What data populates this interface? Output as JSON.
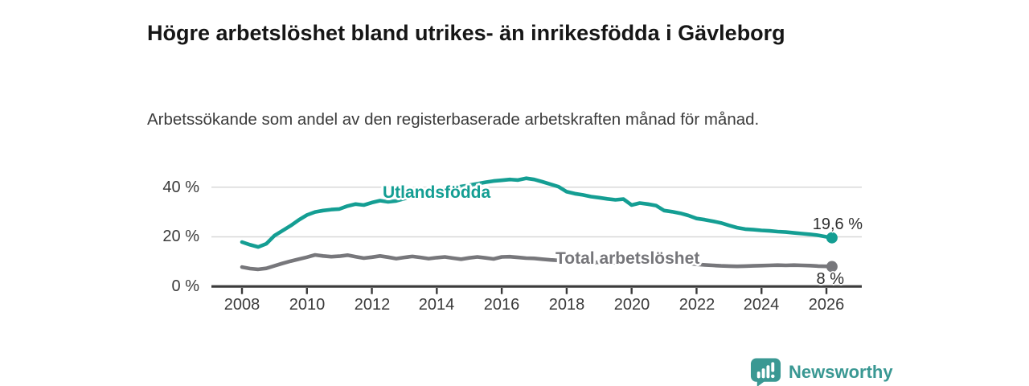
{
  "chart_data": {
    "type": "line",
    "title": "Högre arbetslöshet bland utrikes- än inrikesfödda i Gävleborg",
    "subtitle": "Arbetssökande som andel av den registerbaserade arbetskraften månad för månad.",
    "xlabel": "",
    "ylabel": "",
    "grid": "horizontal",
    "legend_position": "inline-labels-on-lines",
    "xlim": [
      2007.1,
      2027.1
    ],
    "ylim": [
      0,
      47
    ],
    "y_tick_labels": [
      "40 %",
      "20 %",
      "0 %"
    ],
    "y_tick_values": [
      40,
      20,
      0
    ],
    "x_tick_labels": [
      "2008",
      "2010",
      "2012",
      "2014",
      "2016",
      "2018",
      "2020",
      "2022",
      "2024",
      "2026"
    ],
    "x": [
      2008.0,
      2008.25,
      2008.5,
      2008.75,
      2009.0,
      2009.25,
      2009.5,
      2009.75,
      2010.0,
      2010.25,
      2010.5,
      2010.75,
      2011.0,
      2011.25,
      2011.5,
      2011.75,
      2012.0,
      2012.25,
      2012.5,
      2012.75,
      2013.0,
      2013.25,
      2013.5,
      2013.75,
      2014.0,
      2014.25,
      2014.5,
      2014.75,
      2015.0,
      2015.25,
      2015.5,
      2015.75,
      2016.0,
      2016.25,
      2016.5,
      2016.75,
      2017.0,
      2017.25,
      2017.5,
      2017.75,
      2018.0,
      2018.25,
      2018.5,
      2018.75,
      2019.0,
      2019.25,
      2019.5,
      2019.75,
      2020.0,
      2020.25,
      2020.5,
      2020.75,
      2021.0,
      2021.25,
      2021.5,
      2021.75,
      2022.0,
      2022.25,
      2022.5,
      2022.75,
      2023.0,
      2023.25,
      2023.5,
      2023.75,
      2024.0,
      2024.25,
      2024.5,
      2024.75,
      2025.0,
      2025.25,
      2025.5,
      2025.75,
      2026.0,
      2026.17
    ],
    "series": [
      {
        "name": "Total arbetslöshet",
        "color": "#77777b",
        "end_label": "8 %",
        "end_value": 8.0,
        "values": [
          7.8,
          7.2,
          6.9,
          7.3,
          8.3,
          9.3,
          10.2,
          11.0,
          11.8,
          12.7,
          12.3,
          12.0,
          12.2,
          12.6,
          12.0,
          11.4,
          11.8,
          12.3,
          11.8,
          11.2,
          11.7,
          12.1,
          11.7,
          11.2,
          11.6,
          11.9,
          11.4,
          11.0,
          11.5,
          11.9,
          11.5,
          11.1,
          11.9,
          12.0,
          11.7,
          11.4,
          11.3,
          11.0,
          10.7,
          10.5,
          10.3,
          10.2,
          10.0,
          9.8,
          9.7,
          9.6,
          9.7,
          9.9,
          10.0,
          11.0,
          11.3,
          11.0,
          10.7,
          10.3,
          9.8,
          9.3,
          8.9,
          8.7,
          8.5,
          8.3,
          8.2,
          8.1,
          8.2,
          8.3,
          8.4,
          8.5,
          8.6,
          8.5,
          8.6,
          8.5,
          8.4,
          8.2,
          8.1,
          8.0
        ]
      },
      {
        "name": "Utlandsfödda",
        "color": "#149e93",
        "end_label": "19,6 %",
        "end_value": 19.6,
        "values": [
          17.9,
          16.8,
          15.9,
          17.2,
          20.5,
          22.5,
          24.5,
          26.8,
          28.8,
          30.0,
          30.6,
          31.0,
          31.2,
          32.4,
          33.2,
          32.8,
          33.8,
          34.6,
          34.1,
          34.5,
          35.4,
          36.2,
          37.0,
          37.9,
          38.7,
          39.2,
          39.8,
          40.3,
          40.8,
          41.4,
          42.0,
          42.5,
          42.8,
          43.1,
          42.9,
          43.6,
          43.1,
          42.2,
          41.2,
          40.2,
          38.2,
          37.4,
          36.9,
          36.2,
          35.8,
          35.3,
          34.9,
          35.2,
          32.8,
          33.6,
          33.2,
          32.6,
          30.6,
          30.1,
          29.5,
          28.6,
          27.4,
          26.9,
          26.3,
          25.6,
          24.6,
          23.7,
          23.1,
          22.9,
          22.6,
          22.4,
          22.1,
          21.9,
          21.6,
          21.3,
          21.0,
          20.6,
          20.0,
          19.6
        ]
      }
    ],
    "colors": {
      "foreign_line": "#149e93",
      "total_line": "#77777b",
      "axis": "#3b3b3b",
      "gridline": "#d8d8d8",
      "tick_text": "#3a3a3a",
      "title_text": "#161616"
    }
  },
  "footer": {
    "brand": "Newsworthy",
    "brand_color": "#3a9893"
  }
}
